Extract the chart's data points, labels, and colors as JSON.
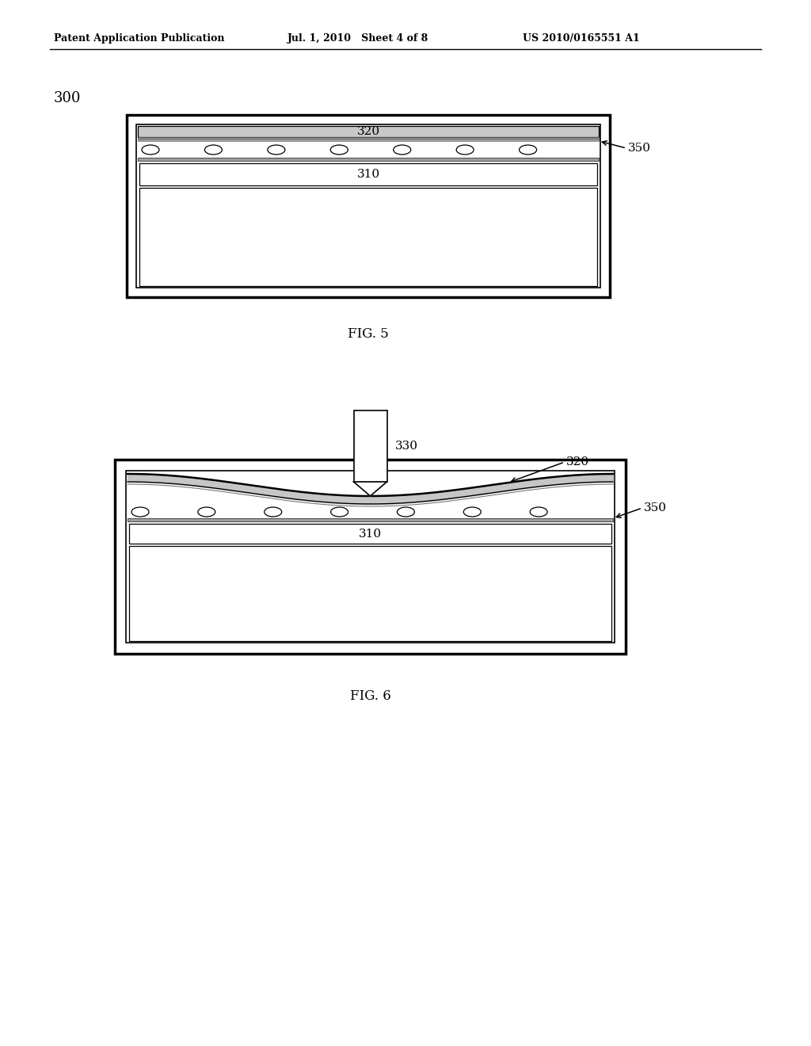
{
  "header_left": "Patent Application Publication",
  "header_mid": "Jul. 1, 2010   Sheet 4 of 8",
  "header_right": "US 2010/0165551 A1",
  "fig5_label": "FIG. 5",
  "fig6_label": "FIG. 6",
  "label_300": "300",
  "label_310": "310",
  "label_320_fig5": "320",
  "label_350_fig5": "350",
  "label_310_fig6": "310",
  "label_320_fig6": "320",
  "label_330_fig6": "330",
  "label_350_fig6": "350",
  "line_color": "#000000",
  "bg_color": "#ffffff"
}
